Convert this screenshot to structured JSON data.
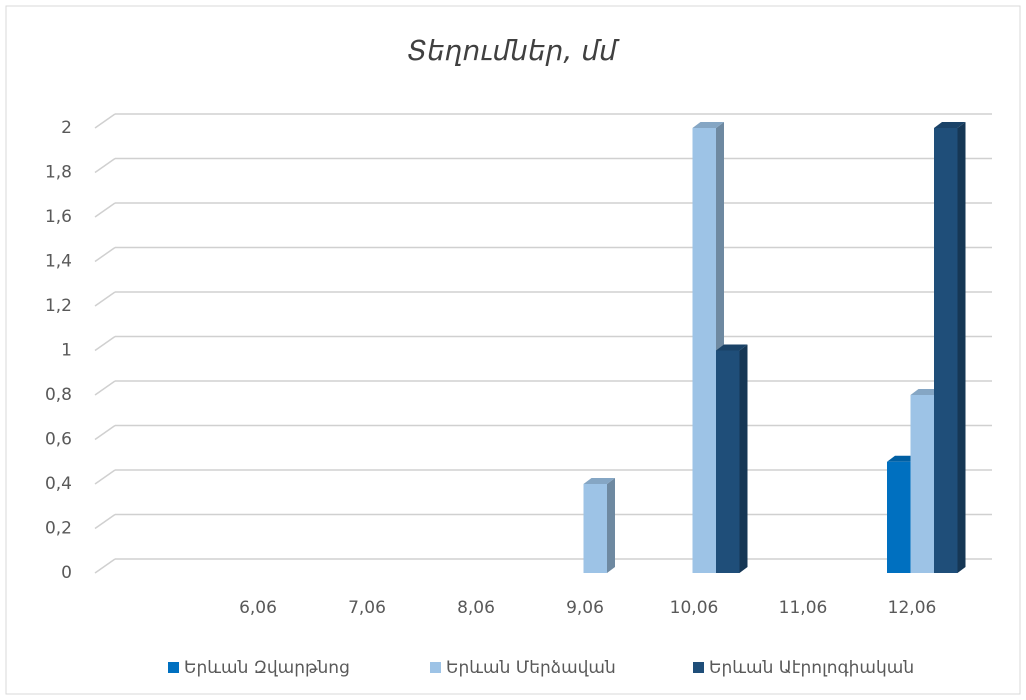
{
  "chart_data": {
    "type": "bar",
    "title": "Տեղումներ, մմ",
    "categories": [
      "6,06",
      "7,06",
      "8,06",
      "9,06",
      "10,06",
      "11,06",
      "12,06"
    ],
    "series": [
      {
        "name": "Երևան Զվարթնոց",
        "color": "#0070c0",
        "values": [
          0,
          0,
          0,
          0,
          0,
          0,
          0.5
        ]
      },
      {
        "name": "Երևան Մերձավան",
        "color": "#9dc3e6",
        "values": [
          0,
          0,
          0,
          0.4,
          2,
          0,
          0.8
        ]
      },
      {
        "name": "Երևան Աէրոլոգիական",
        "color": "#1f4e79",
        "values": [
          0,
          0,
          0,
          0,
          1,
          0,
          2
        ]
      }
    ],
    "ylim": [
      0,
      2
    ],
    "yticks": [
      0,
      {
        "value": 0.2,
        "label": "0,2"
      },
      {
        "value": 0.4,
        "label": "0,4"
      },
      {
        "value": 0.6,
        "label": "0,6"
      },
      {
        "value": 0.8,
        "label": "0,8"
      },
      1,
      {
        "value": 1.2,
        "label": "1,2"
      },
      {
        "value": 1.4,
        "label": "1,4"
      },
      {
        "value": 1.6,
        "label": "1,6"
      },
      {
        "value": 1.8,
        "label": "1,8"
      },
      2
    ],
    "grid": true,
    "legend": "bottom"
  }
}
